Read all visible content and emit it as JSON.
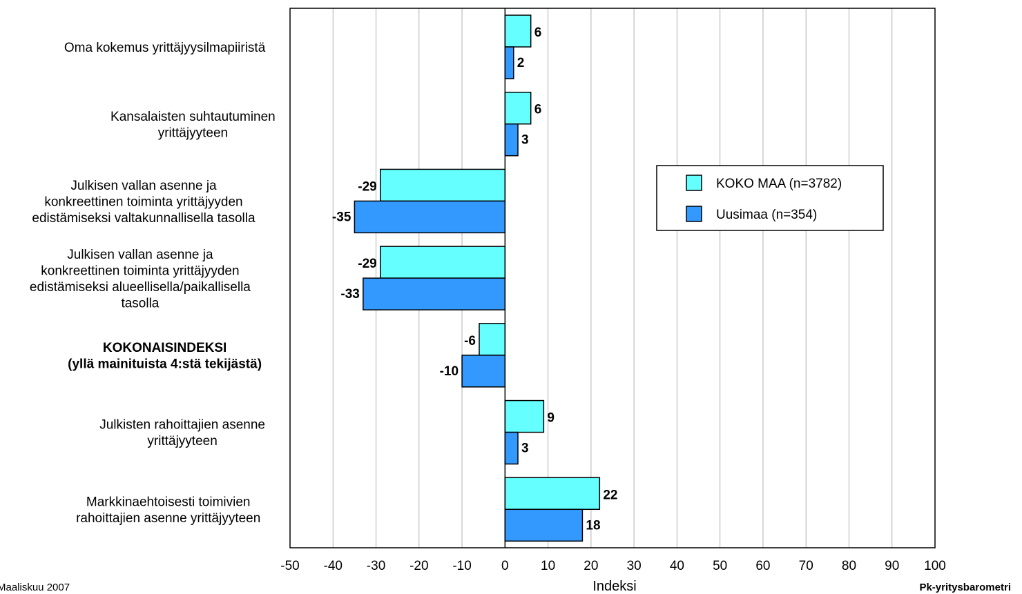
{
  "chart_data": {
    "type": "bar",
    "orientation": "horizontal",
    "categories": [
      [
        "Oma kokemus yrittäjyysilmapiiristä"
      ],
      [
        "Kansalaisten suhtautuminen",
        "yrittäjyyteen"
      ],
      [
        "Julkisen vallan asenne ja",
        "konkreettinen toiminta yrittäjyyden",
        "edistämiseksi valtakunnallisella tasolla"
      ],
      [
        "Julkisen vallan asenne ja",
        "konkreettinen toiminta yrittäjyyden",
        "edistämiseksi alueellisella/paikallisella",
        "tasolla"
      ],
      [
        "KOKONAISINDEKSI",
        "(yllä mainituista 4:stä tekijästä)"
      ],
      [
        "Julkisten rahoittajien asenne",
        "yrittäjyyteen"
      ],
      [
        "Markkinaehtoisesti toimivien",
        "rahoittajien asenne yrittäjyyteen"
      ]
    ],
    "bold_categories": [
      4
    ],
    "series": [
      {
        "name": "KOKO MAA (n=3782)",
        "color": "#66FFFF",
        "values": [
          6,
          6,
          -29,
          -29,
          -6,
          9,
          22
        ]
      },
      {
        "name": "Uusimaa (n=354)",
        "color": "#3399FF",
        "values": [
          2,
          3,
          -35,
          -33,
          -10,
          3,
          18
        ]
      }
    ],
    "xlim": [
      -50,
      100
    ],
    "xticks": [
      -50,
      -40,
      -30,
      -20,
      -10,
      0,
      10,
      20,
      30,
      40,
      50,
      60,
      70,
      80,
      90,
      100
    ],
    "xlabel": "Indeksi",
    "grid": true,
    "legend_position": "right"
  },
  "footer": {
    "left": "Maaliskuu 2007",
    "right": "Pk-yritysbarometri"
  }
}
